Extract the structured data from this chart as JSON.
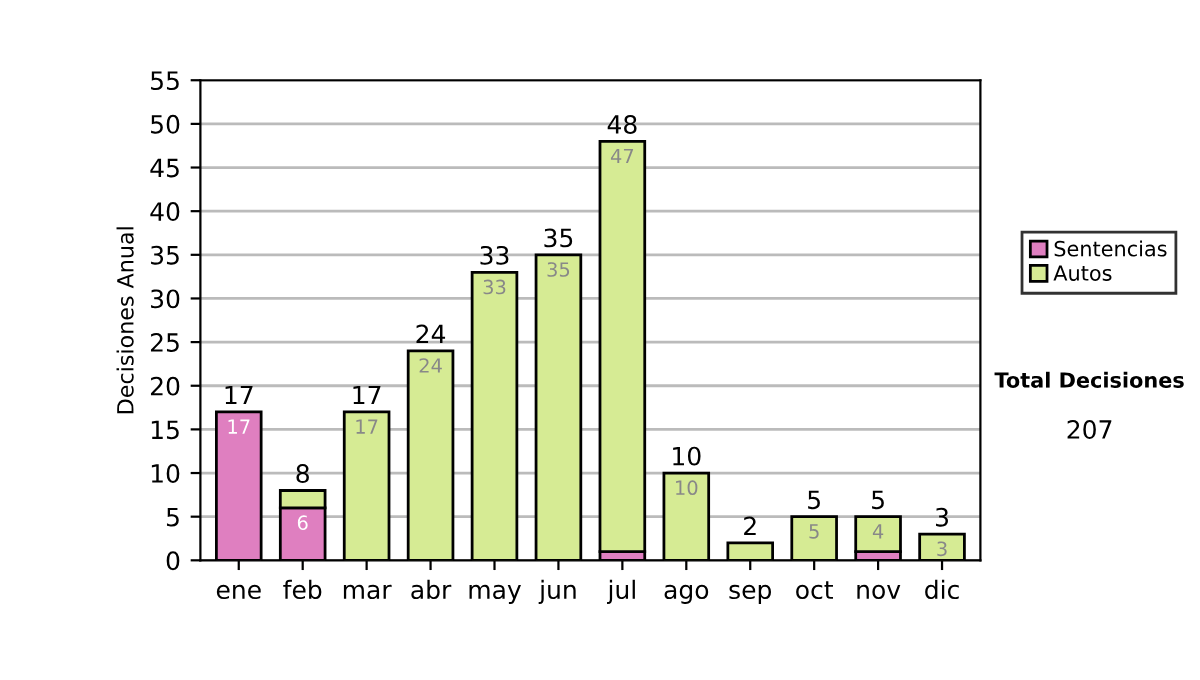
{
  "chart_data": {
    "type": "bar",
    "stacked": true,
    "categories": [
      "ene",
      "feb",
      "mar",
      "abr",
      "may",
      "jun",
      "jul",
      "ago",
      "sep",
      "oct",
      "nov",
      "dic"
    ],
    "series": [
      {
        "name": "Sentencias",
        "color": "#df7fc0",
        "values": [
          17,
          6,
          null,
          null,
          null,
          null,
          1,
          null,
          null,
          null,
          1,
          null
        ],
        "value_labels": [
          "17",
          "6",
          null,
          null,
          null,
          null,
          null,
          null,
          null,
          null,
          null,
          null
        ]
      },
      {
        "name": "Autos",
        "color": "#d6eb94",
        "values": [
          null,
          2,
          17,
          24,
          33,
          35,
          47,
          10,
          2,
          5,
          4,
          3
        ],
        "value_labels": [
          null,
          null,
          "17",
          "24",
          "33",
          "35",
          "47",
          "10",
          null,
          "5",
          "4",
          "3"
        ]
      }
    ],
    "totals": [
      "17",
      "8",
      "17",
      "24",
      "33",
      "35",
      "48",
      "10",
      "2",
      "5",
      "5",
      "3"
    ],
    "ylabel": "Decisiones Anual",
    "ylim": [
      0,
      55
    ],
    "yticks": [
      0,
      5,
      10,
      15,
      20,
      25,
      30,
      35,
      40,
      45,
      50,
      55
    ],
    "grid": "y",
    "legend": "right",
    "annotations": [
      "Total Decisiones",
      "207"
    ]
  }
}
